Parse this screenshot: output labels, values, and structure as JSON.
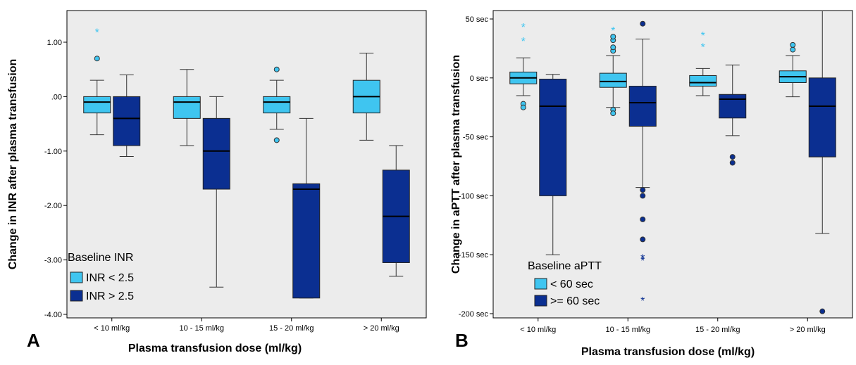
{
  "chart_data": [
    {
      "type": "box",
      "panel_letter": "A",
      "ylabel": "Change in INR after plasma transfusion",
      "xlabel": "Plasma transfusion dose (ml/kg)",
      "ylim": [
        -4.0,
        1.5
      ],
      "yticks": [
        1.0,
        0.0,
        -1.0,
        -2.0,
        -3.0,
        -4.0
      ],
      "ytick_labels": [
        "1.00",
        ".00",
        "-1.00",
        "-2.00",
        "-3.00",
        "-4.00"
      ],
      "categories": [
        "< 10 ml/kg",
        "10 - 15 ml/kg",
        "15 - 20 ml/kg",
        "> 20 ml/kg"
      ],
      "legend": {
        "title": "Baseline INR",
        "position": "bottom-left",
        "entries": [
          "INR < 2.5",
          "INR > 2.5"
        ]
      },
      "colors": [
        "#3fc5f0",
        "#0b2f91"
      ],
      "series": [
        {
          "name": "INR < 2.5",
          "boxes": [
            {
              "q1": -0.3,
              "median": -0.1,
              "q3": 0.0,
              "wlow": -0.7,
              "whigh": 0.3,
              "outliers": [
                0.7
              ],
              "extremes": [
                1.2
              ]
            },
            {
              "q1": -0.4,
              "median": -0.1,
              "q3": 0.0,
              "wlow": -0.9,
              "whigh": 0.5,
              "outliers": [],
              "extremes": []
            },
            {
              "q1": -0.3,
              "median": -0.1,
              "q3": 0.0,
              "wlow": -0.6,
              "whigh": 0.3,
              "outliers": [
                0.5,
                -0.8
              ],
              "extremes": []
            },
            {
              "q1": -0.3,
              "median": 0.0,
              "q3": 0.3,
              "wlow": -0.8,
              "whigh": 0.8,
              "outliers": [],
              "extremes": []
            }
          ]
        },
        {
          "name": "INR > 2.5",
          "boxes": [
            {
              "q1": -0.9,
              "median": -0.4,
              "q3": 0.0,
              "wlow": -1.1,
              "whigh": 0.4,
              "outliers": [],
              "extremes": []
            },
            {
              "q1": -1.7,
              "median": -1.0,
              "q3": -0.4,
              "wlow": -3.5,
              "whigh": 0.0,
              "outliers": [],
              "extremes": []
            },
            {
              "q1": -3.7,
              "median": -1.7,
              "q3": -1.6,
              "wlow": -3.7,
              "whigh": -0.4,
              "outliers": [],
              "extremes": []
            },
            {
              "q1": -3.05,
              "median": -2.2,
              "q3": -1.35,
              "wlow": -3.3,
              "whigh": -0.9,
              "outliers": [],
              "extremes": []
            }
          ]
        }
      ]
    },
    {
      "type": "box",
      "panel_letter": "B",
      "ylabel": "Change in aPTT after plasma transfusion",
      "xlabel": "Plasma transfusion dose (ml/kg)",
      "ylim": [
        -212,
        60
      ],
      "yticks": [
        50,
        0,
        -50,
        -100,
        -150,
        -200
      ],
      "ytick_labels": [
        "50 sec",
        "0 sec",
        "-50 sec",
        "-100 sec",
        "-150 sec",
        "-200 sec"
      ],
      "categories": [
        "< 10 ml/kg",
        "10 - 15 ml/kg",
        "15 - 20 ml/kg",
        "> 20 ml/kg"
      ],
      "legend": {
        "title": "Baseline aPTT",
        "position": "bottom-left",
        "entries": [
          "< 60 sec",
          ">= 60 sec"
        ]
      },
      "colors": [
        "#3fc5f0",
        "#0b2f91"
      ],
      "series": [
        {
          "name": "< 60 sec",
          "boxes": [
            {
              "q1": -5,
              "median": 0,
              "q3": 5,
              "wlow": -15,
              "whigh": 17,
              "outliers": [
                -22,
                -25
              ],
              "extremes": [
                44,
                32
              ]
            },
            {
              "q1": -8,
              "median": -3,
              "q3": 4,
              "wlow": -25,
              "whigh": 19,
              "outliers": [
                -27,
                -30,
                23,
                26,
                32,
                35
              ],
              "extremes": [
                41
              ]
            },
            {
              "q1": -7,
              "median": -4,
              "q3": 2,
              "wlow": -15,
              "whigh": 8,
              "outliers": [],
              "extremes": [
                37,
                27
              ]
            },
            {
              "q1": -4,
              "median": 1,
              "q3": 6,
              "wlow": -16,
              "whigh": 19,
              "outliers": [
                24,
                28
              ],
              "extremes": []
            }
          ]
        },
        {
          "name": ">= 60 sec",
          "boxes": [
            {
              "q1": -100,
              "median": -24,
              "q3": -1,
              "wlow": -150,
              "whigh": 3,
              "outliers": [],
              "extremes": []
            },
            {
              "q1": -41,
              "median": -21,
              "q3": -7,
              "wlow": -93,
              "whigh": 33,
              "outliers": [
                46,
                -95,
                -100,
                -120,
                -137
              ],
              "extremes": [
                -152,
                -154,
                -188
              ]
            },
            {
              "q1": -34,
              "median": -18,
              "q3": -14,
              "wlow": -49,
              "whigh": 11,
              "outliers": [
                -67,
                -72
              ],
              "extremes": []
            },
            {
              "q1": -67,
              "median": -24,
              "q3": 0,
              "wlow": -132,
              "whigh": 60,
              "outliers": [
                -198
              ],
              "extremes": []
            }
          ]
        }
      ]
    }
  ]
}
